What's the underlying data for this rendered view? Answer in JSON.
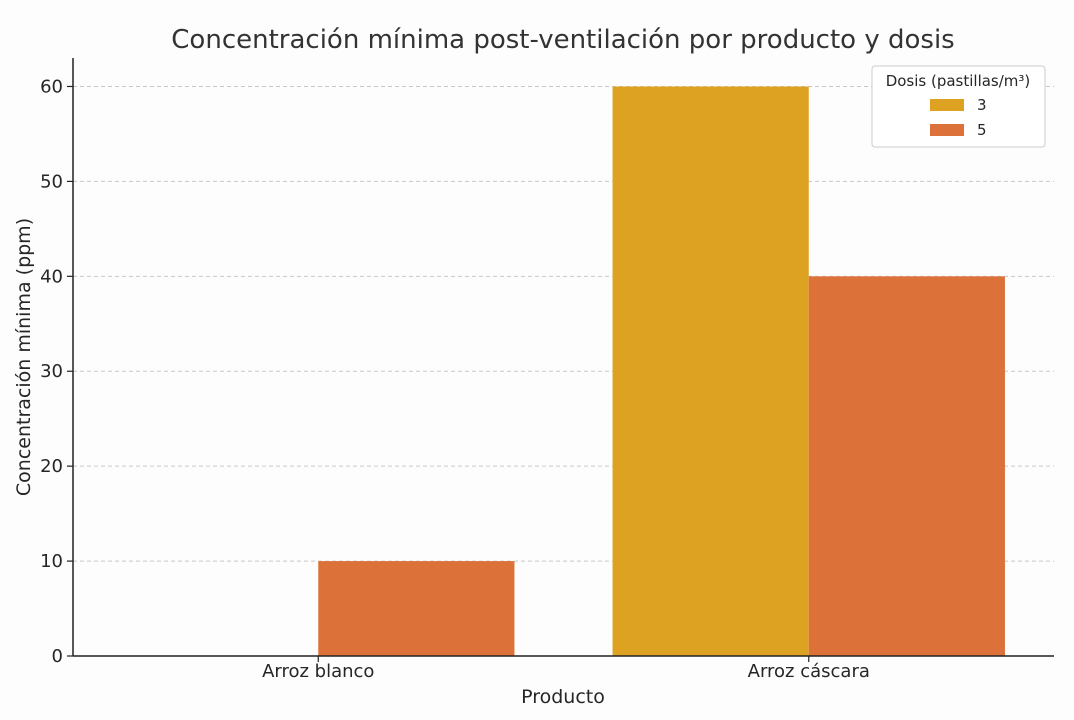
{
  "chart_data": {
    "type": "bar",
    "title": "Concentración mínima post-ventilación por producto y dosis",
    "xlabel": "Producto",
    "ylabel": "Concentración mínima (ppm)",
    "categories": [
      "Arroz blanco",
      "Arroz cáscara"
    ],
    "series": [
      {
        "name": "3",
        "values": [
          0,
          60
        ],
        "color": "#dea222"
      },
      {
        "name": "5",
        "values": [
          10,
          40
        ],
        "color": "#dc723a"
      }
    ],
    "ylim": [
      0,
      63
    ],
    "yticks": [
      0,
      10,
      20,
      30,
      40,
      50,
      60
    ],
    "grid": true,
    "legend": {
      "title": "Dosis (pastillas/m³)",
      "position": "top-right"
    }
  }
}
